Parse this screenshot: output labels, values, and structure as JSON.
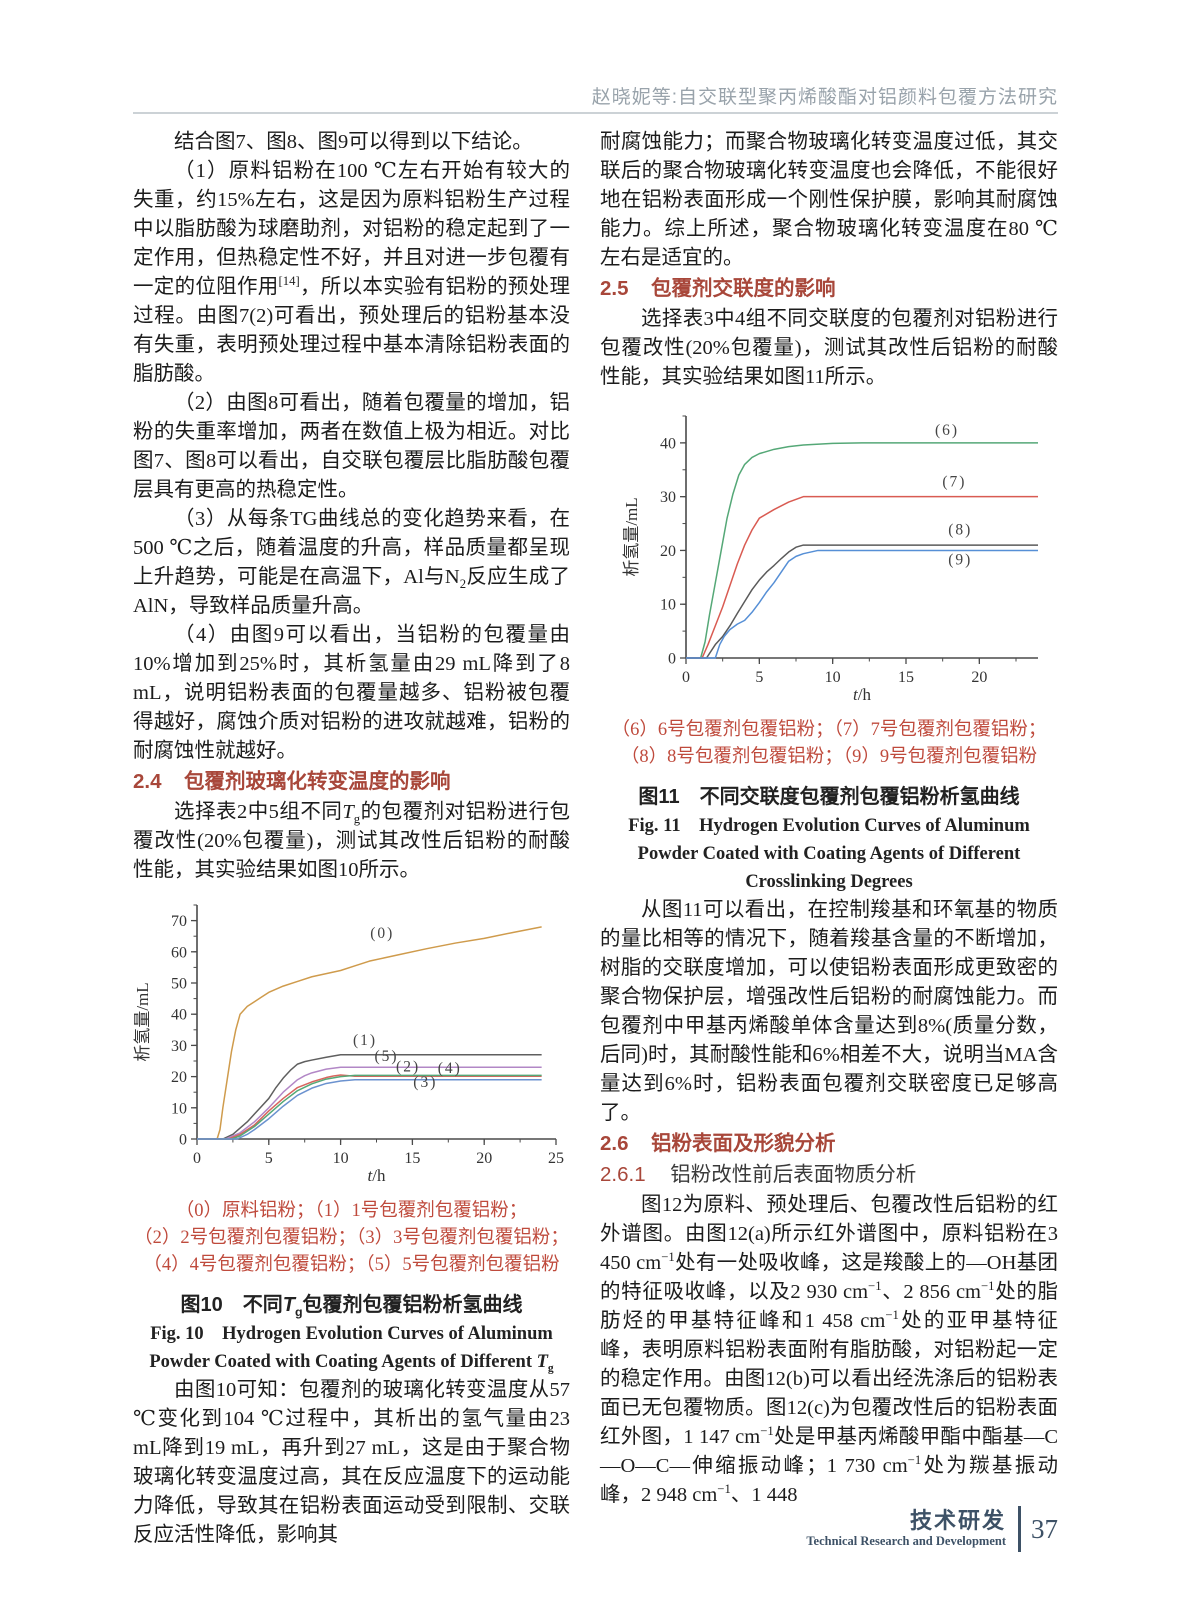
{
  "header": {
    "running_title": "赵晓妮等:自交联型聚丙烯酸酯对铝颜料包覆方法研究"
  },
  "left_column": {
    "para_intro": "结合图7、图8、图9可以得到以下结论。",
    "para_1": "（1）原料铝粉在100 ℃左右开始有较大的失重，约15%左右，这是因为原料铝粉生产过程中以脂肪酸为球磨助剂，对铝粉的稳定起到了一定作用，但热稳定性不好，并且对进一步包覆有一定的位阻作用<sup>[14]</sup>，所以本实验有铝粉的预处理过程。由图7(2)可看出，预处理后的铝粉基本没有失重，表明预处理过程中基本清除铝粉表面的脂肪酸。",
    "para_2": "（2）由图8可看出，随着包覆量的增加，铝粉的失重率增加，两者在数值上极为相近。对比图7、图8可以看出，自交联包覆层比脂肪酸包覆层具有更高的热稳定性。",
    "para_3": "（3）从每条TG曲线总的变化趋势来看，在500 ℃之后，随着温度的升高，样品质量都呈现上升趋势，可能是在高温下，Al与N<sub>2</sub>反应生成了AlN，导致样品质量升高。",
    "para_4": "（4）由图9可以看出，当铝粉的包覆量由10%增加到25%时，其析氢量由29 mL降到了8 mL，说明铝粉表面的包覆量越多、铝粉被包覆得越好，腐蚀介质对铝粉的进攻就越难，铝粉的耐腐蚀性就越好。",
    "heading_2_4": {
      "num": "2.4",
      "title": "包覆剂玻璃化转变温度的影响"
    },
    "para_2_4": "选择表2中5组不同<i>T</i><sub>g</sub>的包覆剂对铝粉进行包覆改性(20%包覆量)，测试其改性后铝粉的耐酸性能，其实验结果如图10所示。",
    "fig10": {
      "legend_lines": [
        "（0）原料铝粉；（1）1号包覆剂包覆铝粉；",
        "（2）2号包覆剂包覆铝粉；（3）3号包覆剂包覆铝粉；",
        "（4）4号包覆剂包覆铝粉；（5）5号包覆剂包覆铝粉"
      ],
      "caption_cn": "图10　不同<i>T</i><sub>g</sub>包覆剂包覆铝粉析氢曲线",
      "caption_en": "Fig. 10　Hydrogen Evolution Curves of Aluminum Powder Coated with Coating Agents of Different <i>T</i><sub>g</sub>"
    },
    "para_after_fig10": "由图10可知：包覆剂的玻璃化转变温度从57 ℃变化到104 ℃过程中，其析出的氢气量由23 mL降到19 mL，再升到27 mL，这是由于聚合物玻璃化转变温度过高，其在反应温度下的运动能力降低，导致其在铝粉表面运动受到限制、交联反应活性降低，影响其"
  },
  "right_column": {
    "para_cont": "耐腐蚀能力；而聚合物玻璃化转变温度过低，其交联后的聚合物玻璃化转变温度也会降低，不能很好地在铝粉表面形成一个刚性保护膜，影响其耐腐蚀能力。综上所述，聚合物玻璃化转变温度在80 ℃左右是适宜的。",
    "heading_2_5": {
      "num": "2.5",
      "title": "包覆剂交联度的影响"
    },
    "para_2_5": "选择表3中4组不同交联度的包覆剂对铝粉进行包覆改性(20%包覆量)，测试其改性后铝粉的耐酸性能，其实验结果如图11所示。",
    "fig11": {
      "legend_lines": [
        "（6）6号包覆剂包覆铝粉；（7）7号包覆剂包覆铝粉；",
        "（8）8号包覆剂包覆铝粉；（9）9号包覆剂包覆铝粉"
      ],
      "caption_cn": "图11　不同交联度包覆剂包覆铝粉析氢曲线",
      "caption_en": "Fig. 11　Hydrogen Evolution Curves of Aluminum Powder Coated with Coating Agents of Different Crosslinking Degrees"
    },
    "para_after_fig11": "从图11可以看出，在控制羧基和环氧基的物质的量比相等的情况下，随着羧基含量的不断增加，树脂的交联度增加，可以使铝粉表面形成更致密的聚合物保护层，增强改性后铝粉的耐腐蚀能力。而包覆剂中甲基丙烯酸单体含量达到8%(质量分数，后同)时，其耐酸性能和6%相差不大，说明当MA含量达到6%时，铝粉表面包覆剂交联密度已足够高了。",
    "heading_2_6": {
      "num": "2.6",
      "title": "铝粉表面及形貌分析"
    },
    "heading_2_6_1": {
      "num": "2.6.1",
      "title": "铝粉改性前后表面物质分析"
    },
    "para_2_6": "图12为原料、预处理后、包覆改性后铝粉的红外谱图。由图12(a)所示红外谱图中，原料铝粉在3 450 cm<sup>−1</sup>处有一处吸收峰，这是羧酸上的—OH基团的特征吸收峰，以及2 930 cm<sup>−1</sup>、2 856 cm<sup>−1</sup>处的脂肪烃的甲基特征峰和1 458 cm<sup>−1</sup>处的亚甲基特征峰，表明原料铝粉表面附有脂肪酸，对铝粉起一定的稳定作用。由图12(b)可以看出经洗涤后的铝粉表面已无包覆物质。图12(c)为包覆改性后的铝粉表面红外图，1 147 cm<sup>−1</sup>处是甲基丙烯酸甲酯中酯基—C—O—C—伸缩振动峰；1 730 cm<sup>−1</sup>处为羰基振动峰，2 948 cm<sup>−1</sup>、1 448"
  },
  "footer": {
    "section_cn": "技术研发",
    "section_en": "Technical Research and Development",
    "page_number": "37"
  },
  "chart_data": [
    {
      "id": "fig10",
      "type": "line",
      "title": "不同Tg包覆剂包覆铝粉析氢曲线",
      "xlabel": "t/h",
      "ylabel": "析氢量/mL",
      "xlim": [
        0,
        25
      ],
      "ylim": [
        0,
        75
      ],
      "xticks": [
        0,
        5,
        10,
        15,
        20,
        25
      ],
      "yticks": [
        0,
        10,
        20,
        30,
        40,
        50,
        60,
        70
      ],
      "x_minor_step": 2.5,
      "y_minor_step": 5,
      "grid": false,
      "legend_position": "inline-labels",
      "series": [
        {
          "name": "(0)",
          "color": "#cf9b4c",
          "label_at": [
            12.9,
            64.5
          ],
          "points": [
            [
              0,
              0
            ],
            [
              1.4,
              0
            ],
            [
              1.6,
              3
            ],
            [
              1.8,
              10
            ],
            [
              2.1,
              19
            ],
            [
              2.4,
              28
            ],
            [
              2.7,
              35
            ],
            [
              3,
              40
            ],
            [
              3.5,
              42.5
            ],
            [
              4,
              44
            ],
            [
              4.5,
              45.5
            ],
            [
              5,
              47
            ],
            [
              6,
              49
            ],
            [
              7,
              50.5
            ],
            [
              8,
              52
            ],
            [
              9,
              53
            ],
            [
              10,
              54
            ],
            [
              11,
              55.5
            ],
            [
              12,
              57
            ],
            [
              13,
              58
            ],
            [
              14,
              59
            ],
            [
              16,
              61
            ],
            [
              18,
              62.8
            ],
            [
              20,
              64.3
            ],
            [
              22,
              66.2
            ],
            [
              24,
              68
            ]
          ]
        },
        {
          "name": "(1)",
          "color": "#5f5f5f",
          "label_at": [
            11.7,
            30.2
          ],
          "points": [
            [
              0,
              0
            ],
            [
              1.8,
              0
            ],
            [
              2.5,
              1.5
            ],
            [
              3,
              3.5
            ],
            [
              3.5,
              5.5
            ],
            [
              4,
              8
            ],
            [
              4.5,
              10.5
            ],
            [
              5,
              13
            ],
            [
              5.5,
              16.5
            ],
            [
              6,
              19.5
            ],
            [
              6.5,
              22
            ],
            [
              7,
              24
            ],
            [
              7.5,
              24.8
            ],
            [
              8,
              25.3
            ],
            [
              9,
              26.2
            ],
            [
              10,
              27
            ],
            [
              24,
              27
            ]
          ]
        },
        {
          "name": "(5)",
          "color": "#b287c6",
          "label_at": [
            13.2,
            25.0
          ],
          "points": [
            [
              0,
              0
            ],
            [
              2,
              0
            ],
            [
              3,
              2
            ],
            [
              4,
              5.5
            ],
            [
              5,
              10
            ],
            [
              5.5,
              12.5
            ],
            [
              6,
              15
            ],
            [
              6.5,
              17
            ],
            [
              7,
              19
            ],
            [
              7.5,
              20.3
            ],
            [
              8,
              21.2
            ],
            [
              9,
              22.4
            ],
            [
              10,
              23
            ],
            [
              24,
              23
            ]
          ]
        },
        {
          "name": "(2)",
          "color": "#d8655e",
          "label_at": [
            14.7,
            21.7
          ],
          "points": [
            [
              0,
              0
            ],
            [
              2.2,
              0
            ],
            [
              3,
              1.5
            ],
            [
              4,
              4.5
            ],
            [
              5,
              9
            ],
            [
              6,
              13
            ],
            [
              7,
              16.5
            ],
            [
              8,
              18.3
            ],
            [
              9,
              19.7
            ],
            [
              9.5,
              20.2
            ],
            [
              10,
              20.5
            ],
            [
              11,
              20.1
            ],
            [
              24,
              20.1
            ]
          ]
        },
        {
          "name": "(4)",
          "color": "#55a877",
          "label_at": [
            17.6,
            21.2
          ],
          "points": [
            [
              0,
              0
            ],
            [
              2.4,
              0
            ],
            [
              3,
              1
            ],
            [
              4,
              4
            ],
            [
              5,
              8
            ],
            [
              6,
              12
            ],
            [
              7,
              15.5
            ],
            [
              8,
              17.7
            ],
            [
              9,
              19.2
            ],
            [
              10,
              20
            ],
            [
              11,
              20.4
            ],
            [
              24,
              20.4
            ]
          ]
        },
        {
          "name": "(3)",
          "color": "#6b92cf",
          "label_at": [
            15.9,
            16.6
          ],
          "points": [
            [
              0,
              0
            ],
            [
              2.8,
              0
            ],
            [
              3.5,
              1.5
            ],
            [
              4,
              3
            ],
            [
              5,
              6.5
            ],
            [
              6,
              10.5
            ],
            [
              7,
              14
            ],
            [
              8,
              16.3
            ],
            [
              9,
              17.8
            ],
            [
              10,
              18.6
            ],
            [
              11,
              19
            ],
            [
              24,
              19
            ]
          ]
        }
      ]
    },
    {
      "id": "fig11",
      "type": "line",
      "title": "不同交联度包覆剂包覆铝粉析氢曲线",
      "xlabel": "t/h",
      "ylabel": "析氢量/mL",
      "xlim": [
        0,
        24
      ],
      "ylim": [
        0,
        45
      ],
      "xticks": [
        0,
        5,
        10,
        15,
        20
      ],
      "yticks": [
        0,
        10,
        20,
        30,
        40
      ],
      "x_minor_step": 2.5,
      "y_minor_step": 5,
      "grid": false,
      "legend_position": "inline-labels",
      "series": [
        {
          "name": "(6)",
          "color": "#55a877",
          "label_at": [
            17.8,
            41.5
          ],
          "points": [
            [
              0,
              0
            ],
            [
              1,
              0
            ],
            [
              1.3,
              3
            ],
            [
              1.6,
              8
            ],
            [
              2,
              14
            ],
            [
              2.4,
              20
            ],
            [
              2.8,
              26
            ],
            [
              3.2,
              30.5
            ],
            [
              3.6,
              34
            ],
            [
              4,
              36
            ],
            [
              4.5,
              37.3
            ],
            [
              5,
              38
            ],
            [
              6,
              38.8
            ],
            [
              7,
              39.3
            ],
            [
              8,
              39.6
            ],
            [
              10,
              39.9
            ],
            [
              12,
              40
            ],
            [
              24,
              40
            ]
          ]
        },
        {
          "name": "(7)",
          "color": "#d95b52",
          "label_at": [
            18.3,
            31.9
          ],
          "points": [
            [
              0,
              0
            ],
            [
              1.1,
              0
            ],
            [
              1.5,
              2.5
            ],
            [
              2,
              6
            ],
            [
              2.5,
              9.5
            ],
            [
              3,
              13.5
            ],
            [
              3.5,
              17.5
            ],
            [
              4,
              21
            ],
            [
              4.5,
              23.8
            ],
            [
              5,
              26
            ],
            [
              6,
              27.6
            ],
            [
              7,
              29
            ],
            [
              8,
              30
            ],
            [
              24,
              30
            ]
          ]
        },
        {
          "name": "(8)",
          "color": "#5a5a5a",
          "label_at": [
            18.7,
            23.0
          ],
          "points": [
            [
              0,
              0
            ],
            [
              1.4,
              0
            ],
            [
              2,
              2.5
            ],
            [
              2.5,
              4
            ],
            [
              3,
              6
            ],
            [
              3.5,
              8.3
            ],
            [
              4,
              10.5
            ],
            [
              4.5,
              12.7
            ],
            [
              5,
              14.5
            ],
            [
              5.5,
              16
            ],
            [
              6,
              17.2
            ],
            [
              6.5,
              18.5
            ],
            [
              7,
              19.7
            ],
            [
              7.5,
              20.6
            ],
            [
              8,
              21
            ],
            [
              24,
              21
            ]
          ]
        },
        {
          "name": "(9)",
          "color": "#568fd6",
          "label_at": [
            18.7,
            17.4
          ],
          "points": [
            [
              0,
              0
            ],
            [
              2,
              0
            ],
            [
              2.3,
              2.5
            ],
            [
              2.6,
              4
            ],
            [
              3,
              5.3
            ],
            [
              3.5,
              6.3
            ],
            [
              4,
              7
            ],
            [
              4.5,
              8.5
            ],
            [
              5,
              10.3
            ],
            [
              5.5,
              12.3
            ],
            [
              6,
              14
            ],
            [
              6.5,
              16
            ],
            [
              7,
              18
            ],
            [
              7.5,
              18.9
            ],
            [
              8,
              19.4
            ],
            [
              9,
              20
            ],
            [
              24,
              20
            ]
          ]
        }
      ]
    }
  ]
}
